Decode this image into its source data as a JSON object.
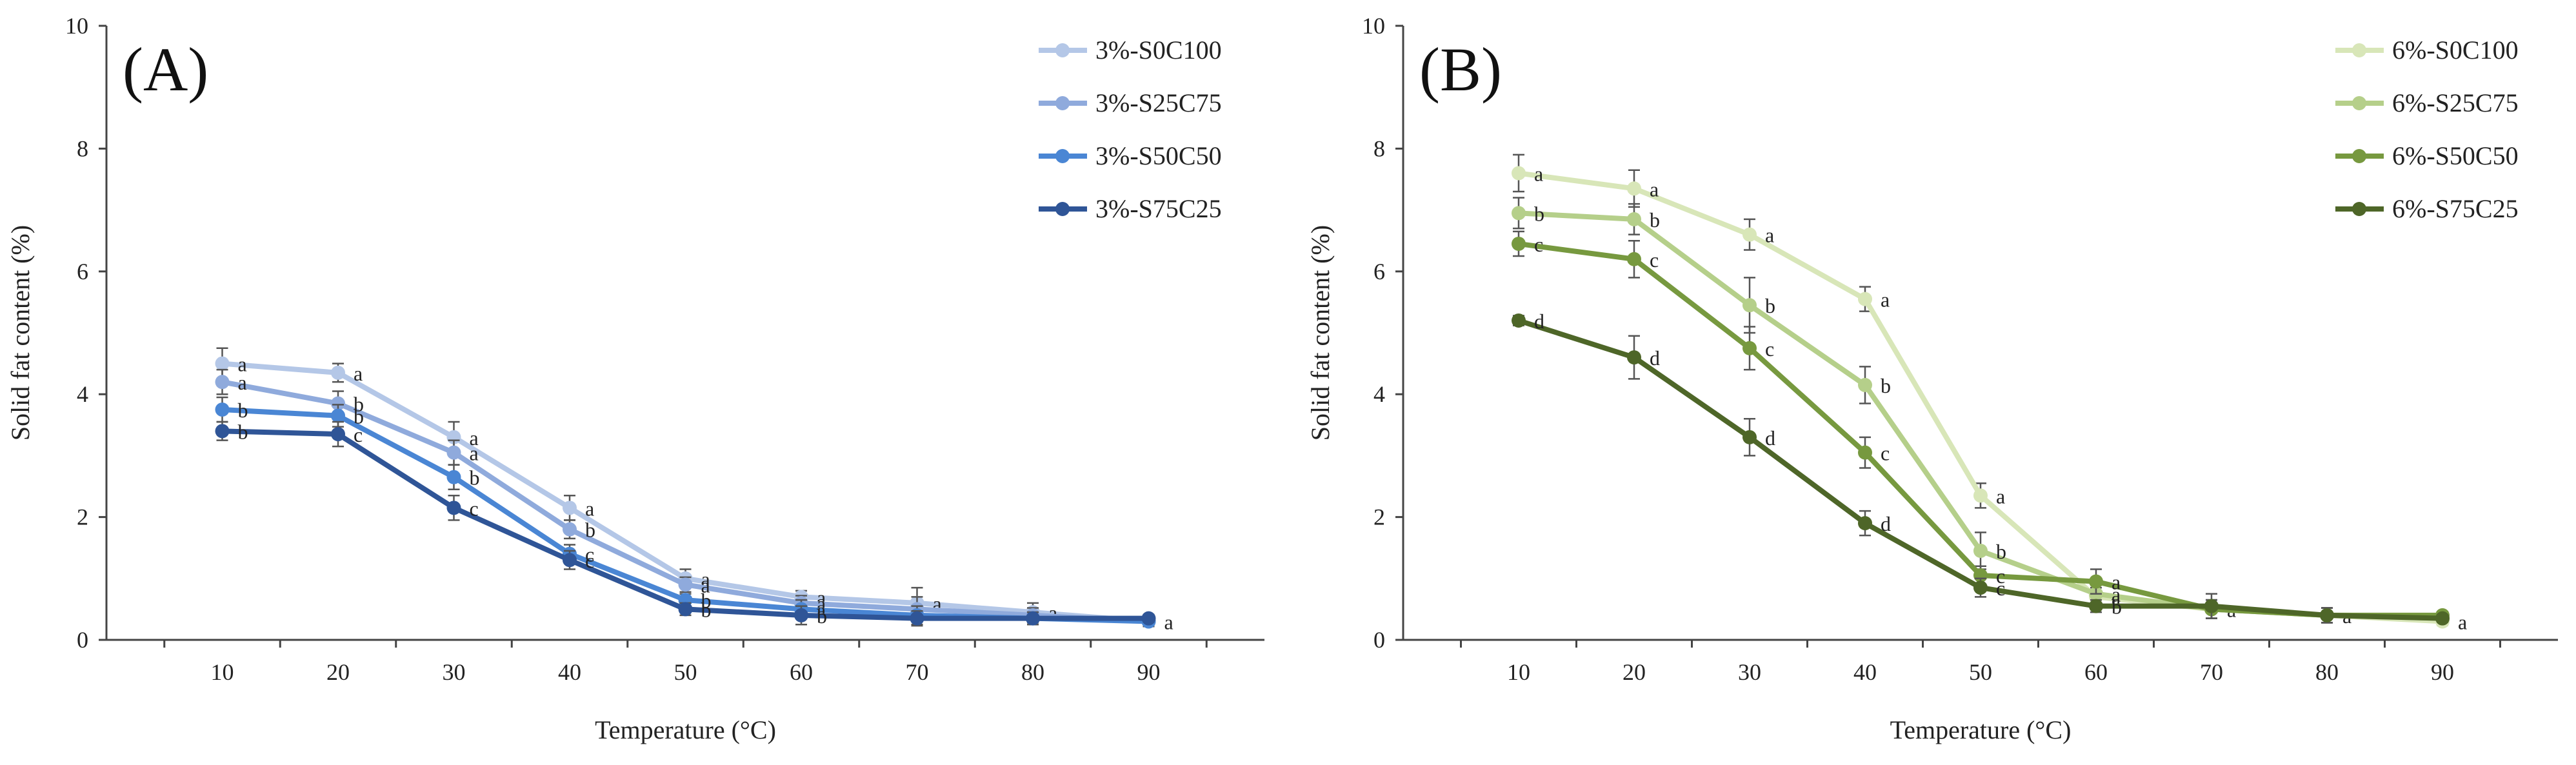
{
  "chart_data": [
    {
      "type": "line",
      "panel_label": "(A)",
      "xlabel": "Temperature (°C)",
      "ylabel": "Solid fat content (%)",
      "x": [
        10,
        20,
        30,
        40,
        50,
        60,
        70,
        80,
        90
      ],
      "xlim": [
        0,
        100
      ],
      "ylim": [
        0,
        10
      ],
      "yticks": [
        0,
        2,
        4,
        6,
        8,
        10
      ],
      "legend_position": "top-right",
      "series": [
        {
          "name": "3%-S0C100",
          "color": "#b4c7e7",
          "values": [
            4.5,
            4.35,
            3.3,
            2.15,
            1.0,
            0.7,
            0.6,
            0.45,
            0.3
          ],
          "errors": [
            0.25,
            0.15,
            0.25,
            0.2,
            0.15,
            0.1,
            0.25,
            0.15,
            0.08
          ],
          "letters": [
            "a",
            "a",
            "a",
            "a",
            "a",
            "a",
            "a",
            "a",
            "a"
          ]
        },
        {
          "name": "3%-S25C75",
          "color": "#8faadc",
          "values": [
            4.2,
            3.85,
            3.05,
            1.8,
            0.9,
            0.6,
            0.5,
            0.4,
            0.3
          ],
          "errors": [
            0.2,
            0.2,
            0.2,
            0.15,
            0.12,
            0.12,
            0.2,
            0.12,
            0.08
          ],
          "letters": [
            "a",
            "b",
            "a",
            "b",
            "a",
            "a",
            "",
            "",
            ""
          ]
        },
        {
          "name": "3%-S50C50",
          "color": "#4a86d4",
          "values": [
            3.75,
            3.65,
            2.65,
            1.4,
            0.65,
            0.5,
            0.4,
            0.35,
            0.3
          ],
          "errors": [
            0.2,
            0.18,
            0.2,
            0.15,
            0.1,
            0.15,
            0.15,
            0.1,
            0.08
          ],
          "letters": [
            "b",
            "b",
            "b",
            "c",
            "b",
            "a",
            "",
            "",
            ""
          ]
        },
        {
          "name": "3%-S75C25",
          "color": "#2f5597",
          "values": [
            3.4,
            3.35,
            2.15,
            1.3,
            0.5,
            0.4,
            0.35,
            0.35,
            0.35
          ],
          "errors": [
            0.15,
            0.2,
            0.2,
            0.15,
            0.1,
            0.15,
            0.12,
            0.1,
            0.06
          ],
          "letters": [
            "b",
            "c",
            "c",
            "c",
            "b",
            "b",
            "",
            "",
            ""
          ]
        }
      ]
    },
    {
      "type": "line",
      "panel_label": "(B)",
      "xlabel": "Temperature (°C)",
      "ylabel": "Solid fat content (%)",
      "x": [
        10,
        20,
        30,
        40,
        50,
        60,
        70,
        80,
        90
      ],
      "xlim": [
        0,
        100
      ],
      "ylim": [
        0,
        10
      ],
      "yticks": [
        0,
        2,
        4,
        6,
        8,
        10
      ],
      "legend_position": "top-right",
      "series": [
        {
          "name": "6%-S0C100",
          "color": "#d8e6b8",
          "values": [
            7.6,
            7.35,
            6.6,
            5.55,
            2.35,
            0.7,
            0.5,
            0.4,
            0.3
          ],
          "errors": [
            0.3,
            0.3,
            0.25,
            0.2,
            0.2,
            0.15,
            0.15,
            0.12,
            0.06
          ],
          "letters": [
            "a",
            "a",
            "a",
            "a",
            "a",
            "a",
            "a",
            "a",
            "a"
          ]
        },
        {
          "name": "6%-S25C75",
          "color": "#b5cf8a",
          "values": [
            6.95,
            6.85,
            5.45,
            4.15,
            1.45,
            0.75,
            0.5,
            0.4,
            0.35
          ],
          "errors": [
            0.25,
            0.25,
            0.45,
            0.3,
            0.3,
            0.15,
            0.15,
            0.12,
            0.06
          ],
          "letters": [
            "b",
            "b",
            "b",
            "b",
            "b",
            "a",
            "",
            "",
            ""
          ]
        },
        {
          "name": "6%-S50C50",
          "color": "#77993f",
          "values": [
            6.45,
            6.2,
            4.75,
            3.05,
            1.05,
            0.95,
            0.5,
            0.4,
            0.4
          ],
          "errors": [
            0.2,
            0.3,
            0.35,
            0.25,
            0.15,
            0.2,
            0.15,
            0.12,
            0.06
          ],
          "letters": [
            "c",
            "c",
            "c",
            "c",
            "c",
            "a",
            "",
            "",
            ""
          ]
        },
        {
          "name": "6%-S75C25",
          "color": "#4e6628",
          "values": [
            5.2,
            4.6,
            3.3,
            1.9,
            0.85,
            0.55,
            0.55,
            0.4,
            0.35
          ],
          "errors": [
            0.08,
            0.35,
            0.3,
            0.2,
            0.15,
            0.1,
            0.2,
            0.12,
            0.06
          ],
          "letters": [
            "d",
            "d",
            "d",
            "d",
            "c",
            "b",
            "",
            "",
            ""
          ]
        }
      ]
    }
  ]
}
